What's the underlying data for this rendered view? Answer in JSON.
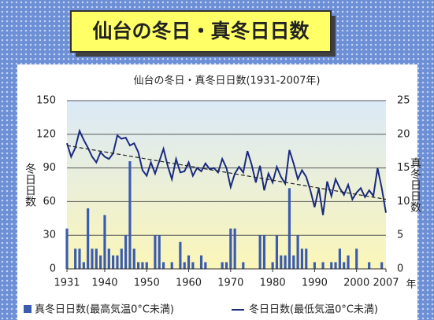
{
  "chart_data": {
    "type": "bar-line",
    "banner": "仙台の冬日・真冬日日数",
    "title": "仙台の冬日・真冬日日数(1931-2007年)",
    "ylabel": "冬日日数",
    "y2label": "真冬日日数",
    "xunit": "年",
    "x": [
      1931,
      1932,
      1933,
      1934,
      1935,
      1936,
      1937,
      1938,
      1939,
      1940,
      1941,
      1942,
      1943,
      1944,
      1945,
      1946,
      1947,
      1948,
      1949,
      1950,
      1951,
      1952,
      1953,
      1954,
      1955,
      1956,
      1957,
      1958,
      1959,
      1960,
      1961,
      1962,
      1963,
      1964,
      1965,
      1966,
      1967,
      1968,
      1969,
      1970,
      1971,
      1972,
      1973,
      1974,
      1975,
      1976,
      1977,
      1978,
      1979,
      1980,
      1981,
      1982,
      1983,
      1984,
      1985,
      1986,
      1987,
      1988,
      1989,
      1990,
      1991,
      1992,
      1993,
      1994,
      1995,
      1996,
      1997,
      1998,
      1999,
      2000,
      2001,
      2002,
      2003,
      2004,
      2005,
      2006,
      2007
    ],
    "series": [
      {
        "name": "真冬日日数(最高気温0°C未満)",
        "color": "#3a5bb0",
        "axis": "y2",
        "kind": "bar",
        "values": [
          6,
          0,
          3,
          3,
          1,
          9,
          3,
          3,
          2,
          8,
          3,
          2,
          2,
          3,
          5,
          16,
          3,
          1,
          1,
          1,
          0,
          5,
          5,
          1,
          0,
          1,
          0,
          4,
          1,
          2,
          1,
          0,
          2,
          1,
          0,
          0,
          0,
          1,
          1,
          6,
          6,
          0,
          1,
          0,
          0,
          0,
          5,
          5,
          0,
          1,
          5,
          2,
          2,
          12,
          2,
          5,
          3,
          3,
          0,
          1,
          0,
          1,
          0,
          1,
          1,
          3,
          1,
          2,
          0,
          3,
          0,
          0,
          1,
          0,
          0,
          1,
          0
        ]
      },
      {
        "name": "冬日日数(最低気温0°C未満)",
        "color": "#1a2a80",
        "axis": "y",
        "kind": "line",
        "values": [
          112,
          100,
          108,
          123,
          115,
          108,
          100,
          95,
          104,
          100,
          98,
          103,
          119,
          116,
          117,
          110,
          112,
          104,
          88,
          83,
          95,
          85,
          96,
          107,
          92,
          80,
          98,
          86,
          87,
          95,
          83,
          90,
          87,
          94,
          89,
          90,
          86,
          98,
          90,
          73,
          85,
          91,
          86,
          105,
          93,
          77,
          92,
          70,
          85,
          77,
          91,
          82,
          76,
          106,
          94,
          80,
          88,
          82,
          70,
          55,
          72,
          48,
          78,
          65,
          80,
          72,
          66,
          75,
          62,
          68,
          72,
          64,
          70,
          65,
          90,
          72,
          50
        ]
      }
    ],
    "trend": {
      "x": [
        1931,
        2007
      ],
      "values": [
        110,
        62
      ]
    },
    "xlim": [
      1931,
      2007
    ],
    "xticks": [
      1931,
      1940,
      1950,
      1960,
      1970,
      1980,
      1990,
      2000,
      2007
    ],
    "ylim": [
      0,
      150
    ],
    "yticks": [
      0,
      30,
      60,
      90,
      120,
      150
    ],
    "y2lim": [
      0,
      25
    ],
    "y2ticks": [
      0,
      5,
      10,
      15,
      20,
      25
    ],
    "grid": true
  }
}
